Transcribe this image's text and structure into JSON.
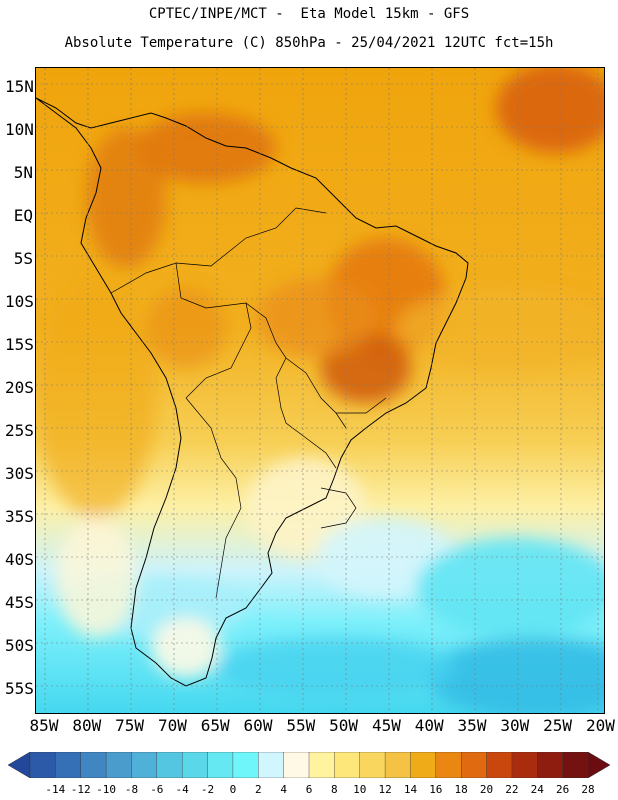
{
  "title": {
    "line1": "CPTEC/INPE/MCT -  Eta Model 15km - GFS",
    "line2": "Absolute Temperature (C) 850hPa - 25/04/2021 12UTC fct=15h"
  },
  "map": {
    "lat_labels": [
      "15N",
      "10N",
      "5N",
      "EQ",
      "5S",
      "10S",
      "15S",
      "20S",
      "25S",
      "30S",
      "35S",
      "40S",
      "45S",
      "50S",
      "55S"
    ],
    "lon_labels": [
      "85W",
      "80W",
      "75W",
      "70W",
      "65W",
      "60W",
      "55W",
      "50W",
      "45W",
      "40W",
      "35W",
      "30W",
      "25W",
      "20W"
    ]
  },
  "colorbar": {
    "labels": [
      "-14",
      "-12",
      "-10",
      "-8",
      "-6",
      "-4",
      "-2",
      "0",
      "2",
      "4",
      "6",
      "8",
      "10",
      "12",
      "14",
      "16",
      "18",
      "20",
      "22",
      "24",
      "26",
      "28"
    ],
    "colors": [
      "#23479a",
      "#2c5aa8",
      "#356fb6",
      "#3f86c2",
      "#4a9ccd",
      "#50b1d8",
      "#55c6e2",
      "#5ad8ea",
      "#65e8f2",
      "#6ff6fa",
      "#d2f6fd",
      "#fff9e6",
      "#fff3a0",
      "#fde77a",
      "#f9d75e",
      "#f4c244",
      "#f0ab18",
      "#e98712",
      "#e06a0f",
      "#c9470d",
      "#aa2c0e",
      "#8e1d10",
      "#741212",
      "#6a0c10"
    ]
  }
}
